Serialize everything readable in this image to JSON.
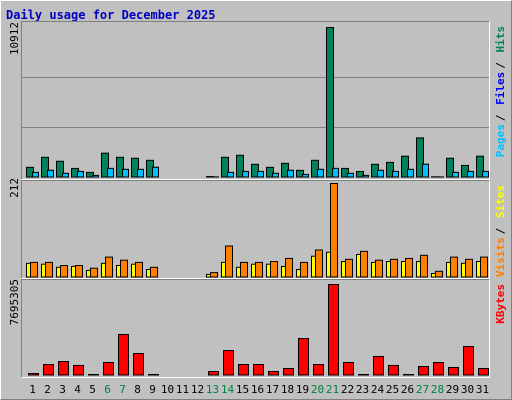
{
  "chart_data": [
    {
      "type": "bar",
      "title": "Daily usage for December 2025",
      "categories": [
        "1",
        "2",
        "3",
        "4",
        "5",
        "6",
        "7",
        "8",
        "9",
        "10",
        "11",
        "12",
        "13",
        "14",
        "15",
        "16",
        "17",
        "18",
        "19",
        "20",
        "21",
        "22",
        "23",
        "24",
        "25",
        "26",
        "27",
        "28",
        "29",
        "30",
        "31"
      ],
      "weekend_indices": [
        5,
        6,
        12,
        13,
        19,
        20,
        26,
        27
      ],
      "weekday_label_color": "#000000",
      "weekend_label_color": "#008040",
      "legend_separator": "/",
      "series": [
        {
          "name": "Hits",
          "color": "#00805c",
          "values": [
            740,
            1470,
            1180,
            660,
            370,
            1770,
            1470,
            1400,
            1250,
            null,
            null,
            null,
            70,
            1470,
            1620,
            960,
            740,
            1030,
            520,
            1250,
            10912,
            660,
            440,
            960,
            1100,
            1550,
            2880,
            50,
            1400,
            880,
            1550
          ]
        },
        {
          "name": "Files",
          "color": "#0000ff",
          "values": [
            370,
            520,
            300,
            440,
            150,
            660,
            590,
            590,
            740,
            null,
            null,
            null,
            40,
            370,
            440,
            440,
            300,
            520,
            220,
            590,
            660,
            300,
            150,
            520,
            440,
            590,
            960,
            40,
            370,
            440,
            440
          ]
        },
        {
          "name": "Pages",
          "color": "#00c0ff",
          "values": [
            370,
            520,
            300,
            440,
            150,
            660,
            590,
            590,
            740,
            null,
            null,
            null,
            40,
            370,
            440,
            440,
            300,
            520,
            220,
            590,
            660,
            300,
            150,
            520,
            440,
            590,
            960,
            40,
            370,
            440,
            440
          ]
        }
      ],
      "ylim": [
        0,
        10912
      ],
      "yticks": [
        10912
      ],
      "grid": true,
      "grid_divisions": 3
    },
    {
      "type": "bar",
      "legend_separator": "/",
      "series": [
        {
          "name": "Sites",
          "color": "#ffff00",
          "values": [
            32,
            30,
            23,
            25,
            16,
            32,
            27,
            30,
            18,
            null,
            null,
            null,
            7,
            34,
            23,
            30,
            30,
            25,
            18,
            48,
            57,
            36,
            52,
            34,
            36,
            36,
            36,
            9,
            34,
            32,
            36
          ]
        },
        {
          "name": "Visits",
          "color": "#ff8000",
          "values": [
            34,
            34,
            27,
            27,
            21,
            46,
            39,
            34,
            23,
            null,
            null,
            null,
            11,
            71,
            34,
            34,
            36,
            43,
            34,
            62,
            212,
            41,
            59,
            39,
            41,
            43,
            50,
            14,
            46,
            41,
            46
          ]
        }
      ],
      "ylim": [
        0,
        212
      ],
      "yticks": [
        212
      ],
      "grid": false
    },
    {
      "type": "bar",
      "series": [
        {
          "name": "KBytes",
          "color": "#ff0000",
          "values": [
            170000,
            930000,
            1180000,
            850000,
            85000,
            1100000,
            3470000,
            1860000,
            85000,
            null,
            null,
            null,
            340000,
            2110000,
            930000,
            930000,
            340000,
            590000,
            3130000,
            930000,
            7695305,
            1100000,
            85000,
            1610000,
            850000,
            85000,
            760000,
            1100000,
            680000,
            2450000,
            590000
          ]
        }
      ],
      "ylim": [
        0,
        7695305
      ],
      "yticks": [
        7695305
      ],
      "grid": false
    }
  ]
}
